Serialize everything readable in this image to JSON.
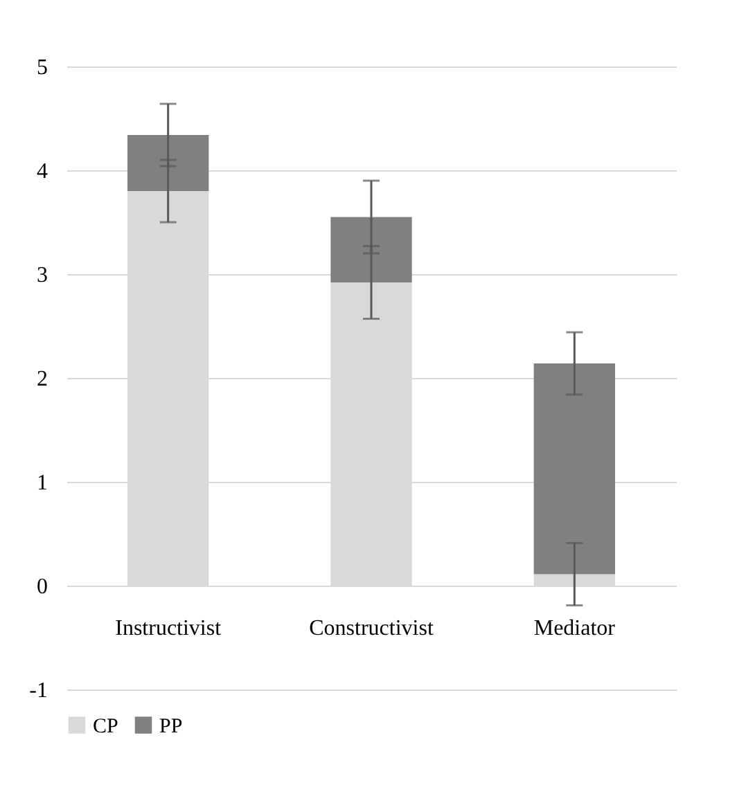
{
  "chart_data": {
    "type": "bar",
    "stacked": true,
    "categories": [
      "Instructivist",
      "Constructivist",
      "Mediator"
    ],
    "series": [
      {
        "name": "CP",
        "color": "#d9d9d9",
        "values": [
          3.8,
          2.92,
          0.11
        ],
        "errors": [
          0.3,
          0.35,
          0.3
        ]
      },
      {
        "name": "PP",
        "color": "#808080",
        "values": [
          0.54,
          0.63,
          2.03
        ],
        "errors": [
          0.3,
          0.35,
          0.3
        ]
      }
    ],
    "ylim": [
      -1,
      5
    ],
    "yticks": [
      -1,
      0,
      1,
      2,
      3,
      4,
      5
    ],
    "grid": "y",
    "legend": "bottom"
  }
}
